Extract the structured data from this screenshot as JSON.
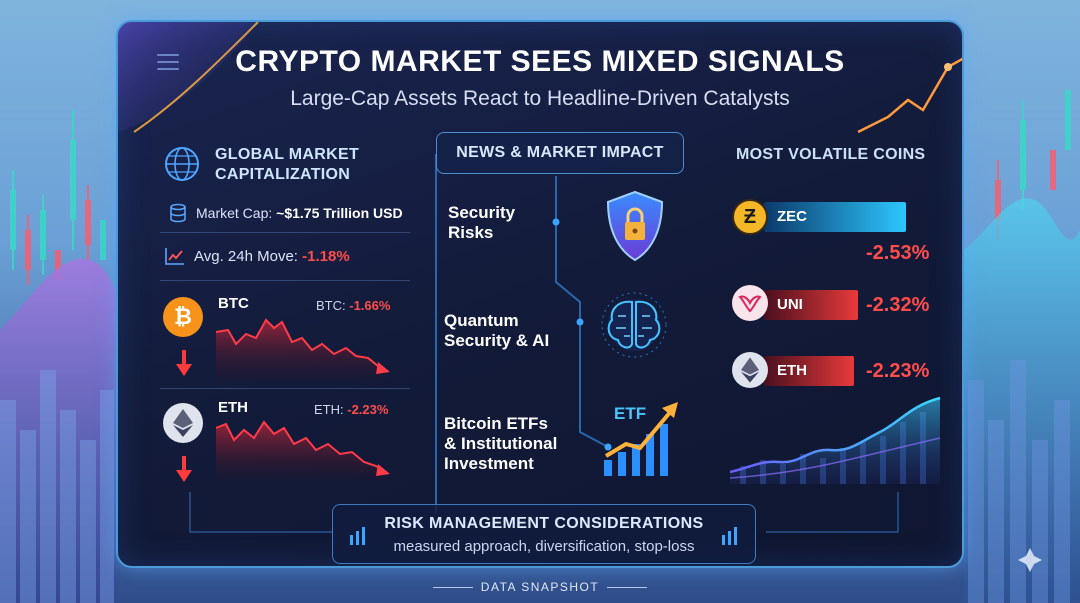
{
  "header": {
    "title": "CRYPTO MARKET SEES MIXED SIGNALS",
    "subtitle": "Large-Cap Assets React to Headline-Driven Catalysts"
  },
  "global_market": {
    "heading_line1": "GLOBAL MARKET",
    "heading_line2": "CAPITALIZATION",
    "market_cap_label": "Market Cap: ",
    "market_cap_value": "~$1.75 Trillion USD",
    "avg_move_label": "Avg. 24h Move: ",
    "avg_move_value": "-1.18%"
  },
  "coins_left": [
    {
      "symbol": "BTC",
      "change_label": "BTC: ",
      "change_value": "-1.66%",
      "color": "#f7931a"
    },
    {
      "symbol": "ETH",
      "change_label": "ETH: ",
      "change_value": "-2.23%",
      "color": "#dfe3ee"
    }
  ],
  "news": {
    "heading": "NEWS & MARKET IMPACT",
    "items": [
      {
        "line1": "Security",
        "line2": "Risks",
        "line3": ""
      },
      {
        "line1": "Quantum",
        "line2": "Security & AI",
        "line3": ""
      },
      {
        "line1": "Bitcoin ETFs",
        "line2": "& Institutional",
        "line3": "Investment"
      }
    ],
    "etf_label": "ETF"
  },
  "volatile": {
    "heading": "MOST VOLATILE COINS",
    "items": [
      {
        "name": "ZEC",
        "change": "-2.53%",
        "bar_color_start": "#0b4a7a",
        "bar_color_end": "#2cc7ff"
      },
      {
        "name": "UNI",
        "change": "-2.32%",
        "bar_color_start": "#5a1020",
        "bar_color_end": "#e83a3a"
      },
      {
        "name": "ETH",
        "change": "-2.23%",
        "bar_color_start": "#5a1020",
        "bar_color_end": "#e83a3a"
      }
    ]
  },
  "risk": {
    "title": "RISK MANAGEMENT CONSIDERATIONS",
    "subtitle": "measured approach, diversification, stop-loss"
  },
  "footer": {
    "label": "DATA SNAPSHOT"
  },
  "colors": {
    "negative": "#ff4c4c",
    "accent_blue": "#4a9ad8"
  }
}
